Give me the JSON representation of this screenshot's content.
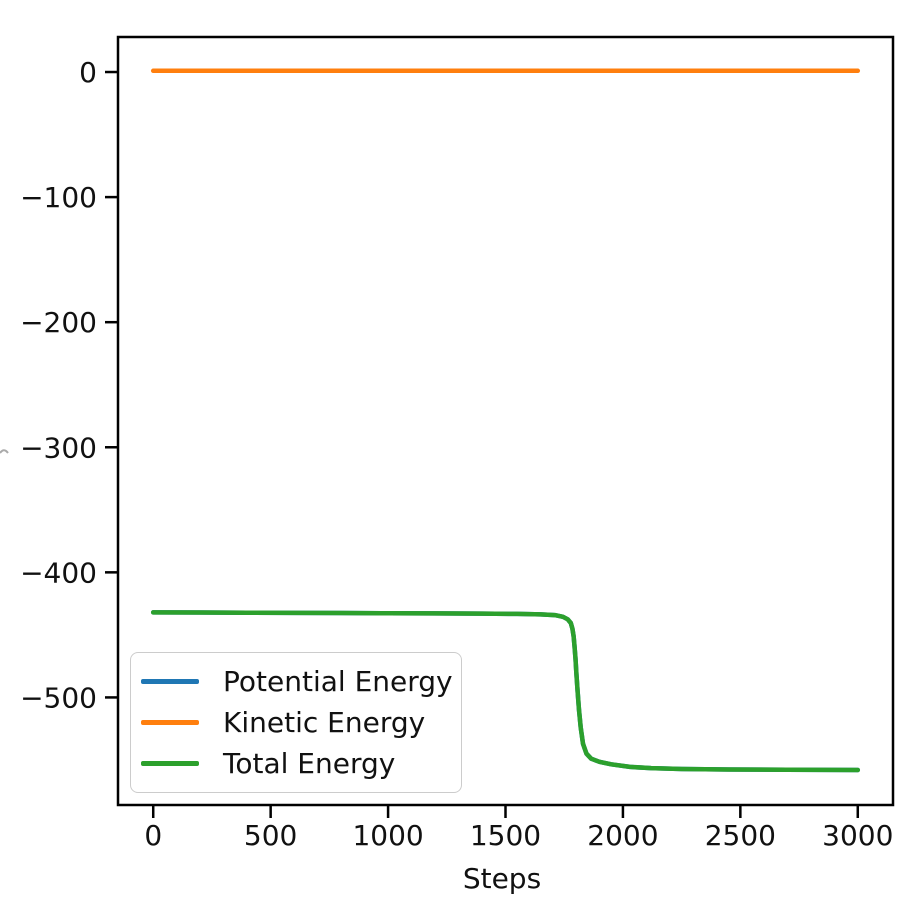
{
  "figure": {
    "background": "#ffffff",
    "axis_color": "#000000",
    "text_color": "#111111",
    "ylabel_fragment": ")"
  },
  "legend": {
    "position": "lower-left",
    "border_color": "#cccccc"
  },
  "chart_data": {
    "type": "line",
    "title": "",
    "xlabel": "Steps",
    "ylabel": "",
    "xlim": [
      -150,
      3150
    ],
    "ylim": [
      -586,
      28
    ],
    "xticks": [
      0,
      500,
      1000,
      1500,
      2000,
      2500,
      3000
    ],
    "yticks": [
      0,
      -100,
      -200,
      -300,
      -400,
      -500
    ],
    "grid": false,
    "series": [
      {
        "name": "Potential Energy",
        "color": "#1f77b4",
        "hidden_behind_total": true,
        "x": [
          0,
          200,
          400,
          600,
          800,
          1000,
          1200,
          1400,
          1550,
          1650,
          1710,
          1745,
          1765,
          1778,
          1785,
          1790,
          1794,
          1798,
          1802,
          1807,
          1813,
          1820,
          1830,
          1845,
          1865,
          1900,
          1950,
          2030,
          2120,
          2250,
          2450,
          2700,
          3000
        ],
        "y": [
          -432,
          -432.1,
          -432.3,
          -432.4,
          -432.5,
          -432.7,
          -432.8,
          -433,
          -433.2,
          -433.6,
          -434.2,
          -435.5,
          -437.5,
          -440.5,
          -445,
          -451,
          -459,
          -469,
          -481,
          -495,
          -510,
          -524,
          -537,
          -545,
          -549,
          -551.5,
          -553.5,
          -555.5,
          -556.5,
          -557.2,
          -557.6,
          -557.8,
          -558
        ]
      },
      {
        "name": "Kinetic Energy",
        "color": "#ff7f0e",
        "x": [
          0,
          3000
        ],
        "y": [
          1,
          1
        ]
      },
      {
        "name": "Total Energy",
        "color": "#2ca02c",
        "x": [
          0,
          200,
          400,
          600,
          800,
          1000,
          1200,
          1400,
          1550,
          1650,
          1710,
          1745,
          1765,
          1778,
          1785,
          1790,
          1794,
          1798,
          1802,
          1807,
          1813,
          1820,
          1830,
          1845,
          1865,
          1900,
          1950,
          2030,
          2120,
          2250,
          2450,
          2700,
          3000
        ],
        "y": [
          -432,
          -432.1,
          -432.3,
          -432.4,
          -432.5,
          -432.7,
          -432.8,
          -433,
          -433.2,
          -433.6,
          -434.2,
          -435.5,
          -437.5,
          -440.5,
          -445,
          -451,
          -459,
          -469,
          -481,
          -495,
          -510,
          -524,
          -537,
          -545,
          -549,
          -551.5,
          -553.5,
          -555.5,
          -556.5,
          -557.2,
          -557.6,
          -557.8,
          -558
        ]
      }
    ]
  }
}
